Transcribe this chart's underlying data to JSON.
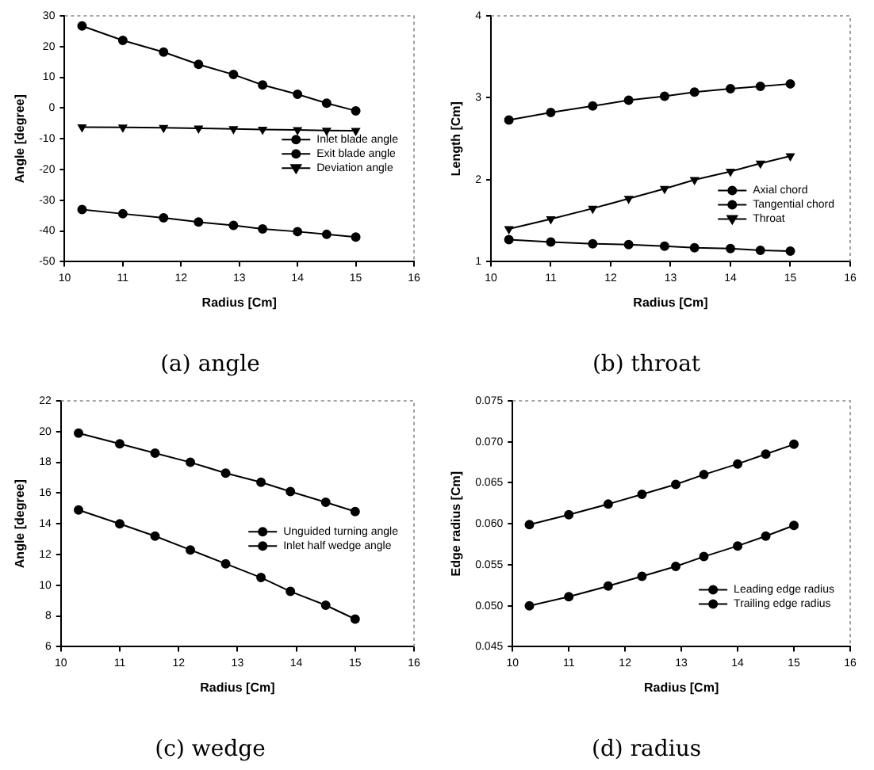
{
  "chart_data": [
    {
      "type": "line",
      "title": "(a) angle",
      "xlabel": "Radius [Cm]",
      "ylabel": "Angle [degree]",
      "xlim": [
        10,
        16
      ],
      "xticks": [
        10,
        11,
        12,
        13,
        14,
        15,
        16
      ],
      "ylim": [
        -50,
        30
      ],
      "yticks": [
        -50,
        -40,
        -30,
        -20,
        -10,
        0,
        10,
        20,
        30
      ],
      "grid": false,
      "legend": "right",
      "line_style": "solid",
      "x": [
        10.3,
        11.0,
        11.7,
        12.3,
        12.9,
        13.4,
        14.0,
        14.5,
        15.0
      ],
      "series": [
        {
          "name": "Inlet blade angle",
          "color": "#000000",
          "marker": "circle",
          "values": [
            26.7,
            22,
            18.2,
            14.2,
            10.9,
            7.5,
            4.5,
            1.6,
            -0.9
          ]
        },
        {
          "name": "Exit blade angle",
          "color": "#000000",
          "marker": "circle",
          "values": [
            -33,
            -34.4,
            -35.7,
            -37.1,
            -38.2,
            -39.3,
            -40.2,
            -41.1,
            -42
          ]
        },
        {
          "name": "Deviation angle",
          "color": "#000000",
          "marker": "triangle",
          "values": [
            -6.2,
            -6.3,
            -6.4,
            -6.6,
            -6.8,
            -7.0,
            -7.1,
            -7.3,
            -7.4
          ]
        }
      ]
    },
    {
      "type": "line",
      "title": "(b) throat",
      "xlabel": "Radius [Cm]",
      "ylabel": "Length [Cm]",
      "xlim": [
        10,
        16
      ],
      "xticks": [
        10,
        11,
        12,
        13,
        14,
        15,
        16
      ],
      "ylim": [
        1,
        4
      ],
      "yticks": [
        1,
        2,
        3,
        4
      ],
      "grid": false,
      "legend": "bottom right",
      "line_style": "solid",
      "x": [
        10.3,
        11.0,
        11.7,
        12.3,
        12.9,
        13.4,
        14.0,
        14.5,
        15.0
      ],
      "series": [
        {
          "name": "Axial chord",
          "color": "#000000",
          "marker": "circle",
          "values": [
            2.73,
            2.82,
            2.9,
            2.97,
            3.02,
            3.07,
            3.11,
            3.14,
            3.17
          ]
        },
        {
          "name": "Tangential chord",
          "color": "#000000",
          "marker": "circle",
          "values": [
            1.27,
            1.24,
            1.22,
            1.21,
            1.19,
            1.17,
            1.16,
            1.14,
            1.13
          ]
        },
        {
          "name": "Throat",
          "color": "#000000",
          "marker": "triangle",
          "values": [
            1.4,
            1.52,
            1.65,
            1.77,
            1.89,
            2.0,
            2.1,
            2.2,
            2.29
          ]
        }
      ]
    },
    {
      "type": "line",
      "title": "(c) wedge",
      "xlabel": "Radius [Cm]",
      "ylabel": "Angle [degree]",
      "xlim": [
        10,
        16
      ],
      "xticks": [
        10,
        11,
        12,
        13,
        14,
        15,
        16
      ],
      "ylim": [
        6,
        22
      ],
      "yticks": [
        6,
        8,
        10,
        12,
        14,
        16,
        18,
        20,
        22
      ],
      "grid": false,
      "legend": "right",
      "line_style": "solid",
      "x": [
        10.3,
        11.0,
        11.6,
        12.2,
        12.8,
        13.4,
        13.9,
        14.5,
        15.0
      ],
      "series": [
        {
          "name": "Unguided turning angle",
          "color": "#000000",
          "marker": "circle",
          "values": [
            19.9,
            19.2,
            18.6,
            18.0,
            17.3,
            16.7,
            16.1,
            15.4,
            14.8
          ]
        },
        {
          "name": "Inlet half wedge angle",
          "color": "#000000",
          "marker": "circle",
          "values": [
            14.9,
            14.0,
            13.2,
            12.3,
            11.4,
            10.5,
            9.6,
            8.7,
            7.8
          ]
        }
      ]
    },
    {
      "type": "line",
      "title": "(d) radius",
      "xlabel": "Radius [Cm]",
      "ylabel": "Edge radius [Cm]",
      "xlim": [
        10,
        16
      ],
      "xticks": [
        10,
        11,
        12,
        13,
        14,
        15,
        16
      ],
      "ylim": [
        0.045,
        0.075
      ],
      "yticks": [
        {
          "value": 0.045,
          "label": "0.045"
        },
        {
          "value": 0.05,
          "label": "0.050"
        },
        {
          "value": 0.055,
          "label": "0.055"
        },
        {
          "value": 0.06,
          "label": "0.060"
        },
        {
          "value": 0.065,
          "label": "0.065"
        },
        {
          "value": 0.07,
          "label": "0.070"
        },
        {
          "value": 0.075,
          "label": "0.075"
        }
      ],
      "grid": false,
      "legend": "bottom right",
      "line_style": "solid",
      "x": [
        10.3,
        11.0,
        11.7,
        12.3,
        12.9,
        13.4,
        14.0,
        14.5,
        15.0
      ],
      "series": [
        {
          "name": "Leading edge radius",
          "color": "#000000",
          "marker": "circle",
          "values": [
            0.0599,
            0.0611,
            0.0624,
            0.0636,
            0.0648,
            0.066,
            0.0673,
            0.0685,
            0.0697
          ]
        },
        {
          "name": "Trailing edge radius",
          "color": "#000000",
          "marker": "circle",
          "values": [
            0.05,
            0.0511,
            0.0524,
            0.0536,
            0.0548,
            0.056,
            0.0573,
            0.0585,
            0.0598
          ]
        }
      ]
    }
  ]
}
